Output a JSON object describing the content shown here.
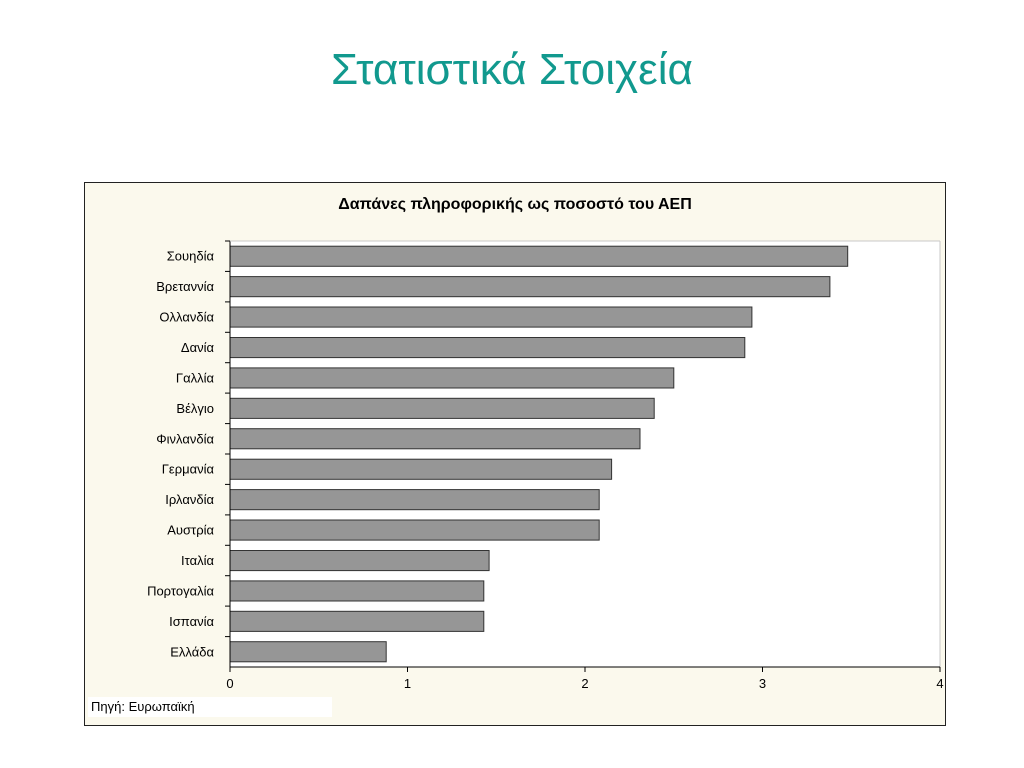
{
  "slide": {
    "title": "Στατιστικά Στοιχεία"
  },
  "source_note": "Πηγή: Ευρωπαϊκή",
  "colors": {
    "title": "#11998e",
    "bar_fill": "#969696",
    "bar_stroke": "#333333",
    "frame_bg": "#fbf9ed",
    "plot_bg": "#ffffff"
  },
  "chart_data": {
    "type": "bar",
    "orientation": "horizontal",
    "title": "Δαπάνες πληροφορικής ως ποσοστό του ΑΕΠ",
    "xlabel": "",
    "ylabel": "",
    "categories": [
      "Σουηδία",
      "Βρεταννία",
      "Ολλανδία",
      "Δανία",
      "Γαλλία",
      "Βέλγιο",
      "Φινλανδία",
      "Γερμανία",
      "Ιρλανδία",
      "Αυστρία",
      "Ιταλία",
      "Πορτογαλία",
      "Ισπανία",
      "Ελλάδα"
    ],
    "values": [
      3.48,
      3.38,
      2.94,
      2.9,
      2.5,
      2.39,
      2.31,
      2.15,
      2.08,
      2.08,
      1.46,
      1.43,
      1.43,
      0.88
    ],
    "xlim": [
      0,
      4
    ],
    "xticks": [
      "0",
      "1",
      "2",
      "3",
      "4"
    ],
    "grid": false,
    "legend": "none"
  }
}
